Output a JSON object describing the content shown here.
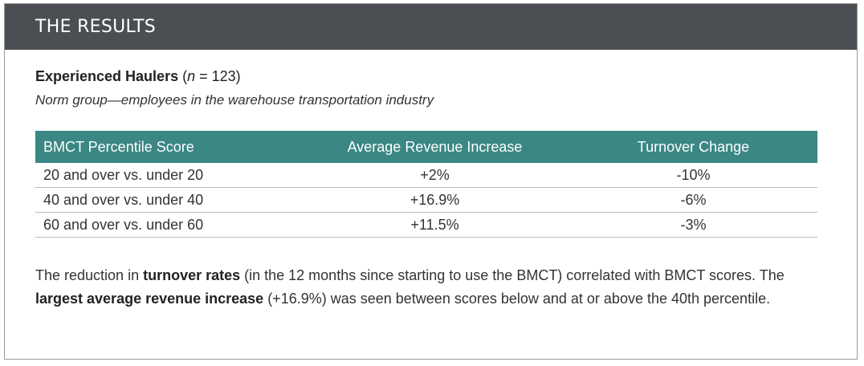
{
  "header": {
    "title": "THE RESULTS"
  },
  "group": {
    "name": "Experienced Haulers",
    "n_open": "(",
    "n_var": "n",
    "n_rest": " = 123)",
    "norm": "Norm group—employees in the warehouse transportation industry"
  },
  "table": {
    "headers": [
      "BMCT Percentile Score",
      "Average Revenue Increase",
      "Turnover Change"
    ],
    "rows": [
      [
        "20 and over vs. under 20",
        "+2%",
        "-10%"
      ],
      [
        "40 and over vs. under 40",
        "+16.9%",
        "-6%"
      ],
      [
        "60 and over vs. under 60",
        "+11.5%",
        "-3%"
      ]
    ]
  },
  "summary": {
    "part1": "The reduction in ",
    "bold1": "turnover rates",
    "part2": " (in the 12 months since starting to use the BMCT) correlated with BMCT scores. The ",
    "bold2": "largest average revenue increase",
    "part3": " (+16.9%) was seen between scores below and at or above the 40th percentile."
  },
  "colors": {
    "header_bar": "#4b4f53",
    "table_header": "#3a8784",
    "border": "#9a9a9a"
  }
}
